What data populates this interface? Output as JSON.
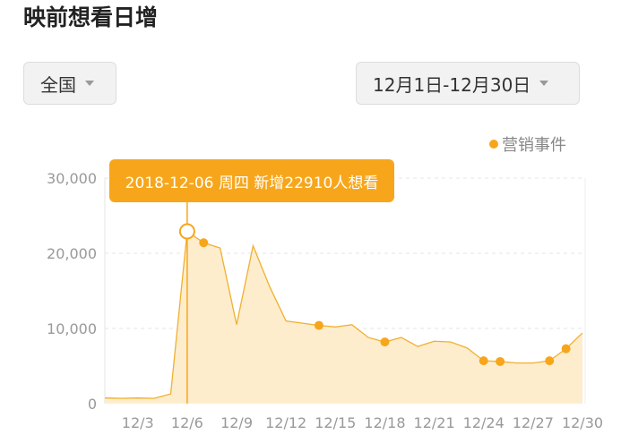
{
  "title": "映前想看日增",
  "region_dropdown": "全国",
  "date_dropdown": "12月1日-12月30日",
  "legend": "营销事件",
  "tooltip": "2018-12-06 周四 新增22910人想看",
  "colors": {
    "accent": "#f7a61b",
    "fill": "#fdebc8"
  },
  "chart_data": {
    "type": "area",
    "x": [
      "12/1",
      "12/2",
      "12/3",
      "12/4",
      "12/5",
      "12/6",
      "12/7",
      "12/8",
      "12/9",
      "12/10",
      "12/11",
      "12/12",
      "12/13",
      "12/14",
      "12/15",
      "12/16",
      "12/17",
      "12/18",
      "12/19",
      "12/20",
      "12/21",
      "12/22",
      "12/23",
      "12/24",
      "12/25",
      "12/26",
      "12/27",
      "12/28",
      "12/29",
      "12/30"
    ],
    "values": [
      750,
      700,
      750,
      700,
      1300,
      22910,
      21400,
      20700,
      10500,
      21000,
      15600,
      11000,
      10700,
      10400,
      10200,
      10500,
      8800,
      8200,
      8800,
      7600,
      8300,
      8200,
      7400,
      5700,
      5600,
      5400,
      5400,
      5700,
      7300,
      9400
    ],
    "marketing_events": [
      "12/7",
      "12/14",
      "12/18",
      "12/24",
      "12/25",
      "12/28",
      "12/29"
    ],
    "highlighted": "12/6",
    "xticks": [
      "12/3",
      "12/6",
      "12/9",
      "12/12",
      "12/15",
      "12/18",
      "12/21",
      "12/24",
      "12/27",
      "12/30"
    ],
    "yticks": [
      "0",
      "10,000",
      "20,000",
      "30,000"
    ],
    "ylim": [
      0,
      30000
    ],
    "grid": true,
    "legend_position": "top-right"
  }
}
